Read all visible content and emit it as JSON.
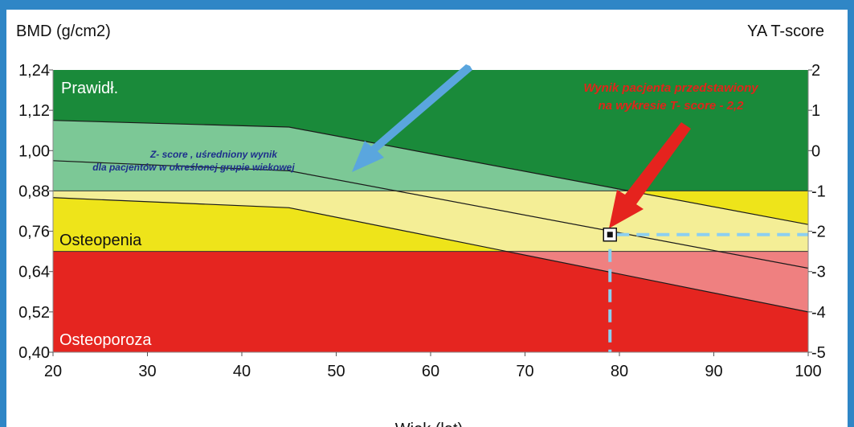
{
  "chart_data": {
    "type": "area",
    "title": "",
    "ylabel_left": "BMD (g/cm2)",
    "ylabel_right": "YA T-score",
    "xlabel": "Wiek (lat)",
    "xlim": [
      20,
      100
    ],
    "ylim": [
      0.4,
      1.24
    ],
    "x_ticks": [
      "20",
      "30",
      "40",
      "50",
      "60",
      "70",
      "80",
      "90",
      "100"
    ],
    "y_ticks_left": [
      "1,24",
      "1,12",
      "1,00",
      "0,88",
      "0,76",
      "0,64",
      "0,52",
      "0,40"
    ],
    "y_ticks_right": [
      "2",
      "1",
      "0",
      "-1",
      "-2",
      "-3",
      "-4",
      "-5"
    ],
    "y_ticks_right_values": [
      1.24,
      1.12,
      1.0,
      0.88,
      0.76,
      0.64,
      0.52,
      0.4
    ],
    "bands": [
      {
        "name": "Prawidł.",
        "from": 0.88,
        "to": 1.24,
        "color": "#1a8a3a"
      },
      {
        "name": "Osteopenia",
        "from": 0.7,
        "to": 0.88,
        "color": "#eee41a"
      },
      {
        "name": "Osteoporoza",
        "from": 0.4,
        "to": 0.7,
        "color": "#e52520"
      }
    ],
    "series": [
      {
        "x": [
          20,
          45,
          100
        ],
        "y": [
          1.09,
          1.07,
          0.78
        ]
      },
      {
        "x": [
          20,
          45,
          100
        ],
        "y": [
          0.97,
          0.94,
          0.65
        ]
      },
      {
        "x": [
          20,
          45,
          100
        ],
        "y": [
          0.86,
          0.83,
          0.52
        ]
      }
    ],
    "patient_point": {
      "x": 79,
      "y": 0.75
    },
    "annotations": {
      "zscore": [
        "Z- score , uśredniony wynik",
        "dla pacjentów w określonej grupie wiekowej"
      ],
      "patient": [
        "Wynik pacjenta przedstawiony",
        "na wykresie T- score - 2,2"
      ]
    },
    "colors": {
      "band_normal": "#1a8a3a",
      "band_osteopenia": "#eee41a",
      "band_osteoporosis": "#e52520",
      "zone_normal": "#7cc896",
      "zone_osteopenia": "#f4ee96",
      "zone_osteoporosis": "#ef8080",
      "arrow_blue": "#5aa6de",
      "arrow_red": "#e5231e",
      "dash": "#8ccff0",
      "annotation_blue": "#1e2f8c",
      "annotation_red": "#e0251a"
    }
  }
}
